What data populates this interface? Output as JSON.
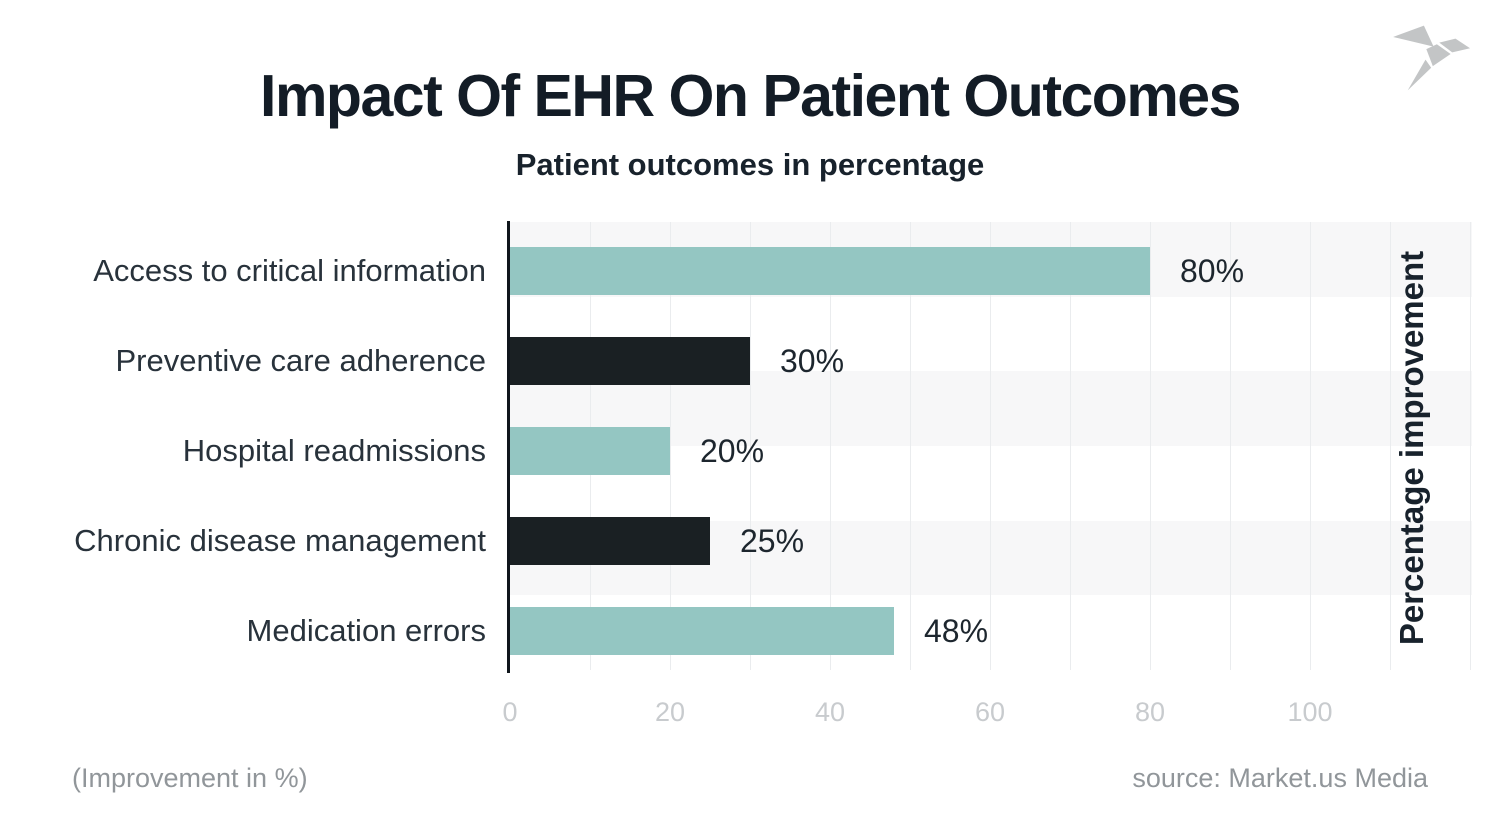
{
  "header": {
    "title": "Impact Of EHR On Patient Outcomes",
    "subtitle": "Patient outcomes in percentage"
  },
  "logo": {
    "icon": "origami-bird-logo",
    "color": "#c3c5c6"
  },
  "chart_data": {
    "type": "bar",
    "orientation": "horizontal",
    "title": "Impact Of EHR On Patient Outcomes",
    "subtitle": "Patient outcomes in percentage",
    "categories": [
      "Access to critical information",
      "Preventive care adherence",
      "Hospital readmissions",
      "Chronic disease management",
      "Medication errors"
    ],
    "values": [
      80,
      30,
      20,
      25,
      48
    ],
    "value_labels": [
      "80%",
      "30%",
      "20%",
      "25%",
      "48%"
    ],
    "bar_colors": [
      "#94c6c2",
      "#1a2023",
      "#94c6c2",
      "#1a2023",
      "#94c6c2"
    ],
    "xlabel": "",
    "ylabel": "Percentage improvement",
    "x_ticks": [
      "0",
      "20",
      "40",
      "60",
      "80",
      "100"
    ],
    "x_tick_values": [
      0,
      20,
      40,
      60,
      80,
      100
    ],
    "xlim": [
      0,
      120
    ],
    "grid": "vertical gridlines every 10 units; horizontal alternating stripe background",
    "legend": "none",
    "stripe_colors": [
      "#f7f7f8",
      "#ffffff"
    ]
  },
  "footer": {
    "note": "(Improvement in %)",
    "source": "source: Market.us Media"
  }
}
